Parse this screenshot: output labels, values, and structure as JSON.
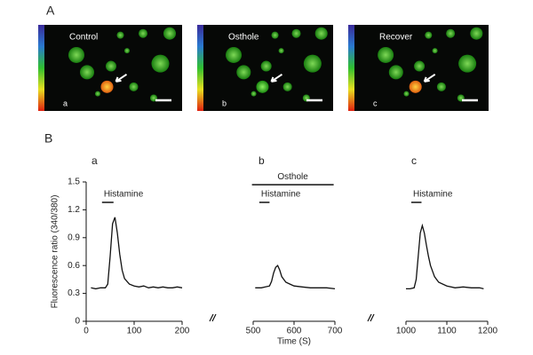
{
  "figure": {
    "panel_a_label": "A",
    "panel_b_label": "B",
    "images": [
      {
        "title": "Control",
        "letter": "a"
      },
      {
        "title": "Osthole",
        "letter": "b"
      },
      {
        "title": "Recover",
        "letter": "c"
      }
    ]
  },
  "chart_data": [
    {
      "type": "line",
      "panel": "a",
      "y_label": "Fluorescence ratio (340/380)",
      "color": "#111111",
      "x": [
        10,
        20,
        30,
        40,
        45,
        50,
        55,
        60,
        65,
        70,
        75,
        80,
        90,
        100,
        110,
        120,
        130,
        140,
        150,
        160,
        170,
        180,
        190,
        200
      ],
      "values": [
        0.36,
        0.35,
        0.36,
        0.36,
        0.4,
        0.7,
        1.05,
        1.12,
        0.95,
        0.72,
        0.55,
        0.46,
        0.4,
        0.38,
        0.37,
        0.38,
        0.36,
        0.37,
        0.36,
        0.37,
        0.36,
        0.36,
        0.37,
        0.36
      ],
      "xlim": [
        0,
        200
      ],
      "xticks": [
        0,
        100,
        200
      ],
      "ylim": [
        0,
        1.5
      ],
      "yticks": [
        0,
        0.3,
        0.6,
        0.9,
        1.2,
        1.5
      ],
      "stimuli": [
        {
          "label": "Histamine",
          "start": 33,
          "end": 57,
          "level": 1.28
        }
      ]
    },
    {
      "type": "line",
      "panel": "b",
      "x_label": "Time (S)",
      "color": "#111111",
      "x": [
        505,
        520,
        530,
        540,
        545,
        550,
        555,
        560,
        565,
        570,
        580,
        590,
        600,
        620,
        640,
        660,
        680,
        700
      ],
      "values": [
        0.36,
        0.36,
        0.37,
        0.38,
        0.43,
        0.52,
        0.58,
        0.6,
        0.55,
        0.48,
        0.42,
        0.4,
        0.38,
        0.37,
        0.36,
        0.36,
        0.36,
        0.35
      ],
      "xlim": [
        500,
        700
      ],
      "xticks": [
        500,
        600,
        700
      ],
      "ylim": [
        0,
        1.5
      ],
      "stimuli": [
        {
          "label": "Osthole",
          "start": 497,
          "end": 697,
          "level": 1.47
        },
        {
          "label": "Histamine",
          "start": 515,
          "end": 540,
          "level": 1.28
        }
      ]
    },
    {
      "type": "line",
      "panel": "c",
      "color": "#111111",
      "x": [
        1000,
        1010,
        1020,
        1025,
        1030,
        1035,
        1040,
        1045,
        1050,
        1055,
        1060,
        1070,
        1080,
        1100,
        1120,
        1140,
        1160,
        1180,
        1190
      ],
      "values": [
        0.35,
        0.35,
        0.36,
        0.45,
        0.7,
        0.95,
        1.03,
        0.95,
        0.82,
        0.7,
        0.6,
        0.48,
        0.42,
        0.38,
        0.36,
        0.37,
        0.36,
        0.36,
        0.35
      ],
      "xlim": [
        1000,
        1200
      ],
      "xticks": [
        1000,
        1100,
        1200
      ],
      "ylim": [
        0,
        1.5
      ],
      "stimuli": [
        {
          "label": "Histamine",
          "start": 1013,
          "end": 1038,
          "level": 1.28
        }
      ]
    }
  ]
}
